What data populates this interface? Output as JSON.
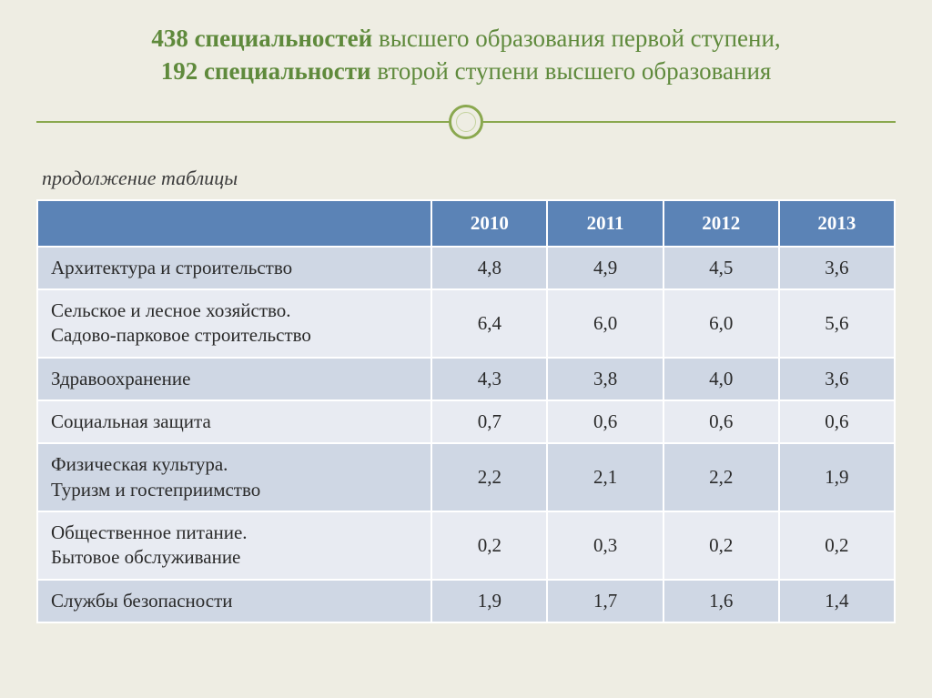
{
  "title": {
    "line1_bold": "438 специальностей",
    "line1_rest": " высшего образования первой ступени,",
    "line2_bold": "192 специальности",
    "line2_rest": " второй ступени высшего образования"
  },
  "subtitle": "продолжение таблицы",
  "colors": {
    "slide_bg": "#eeede3",
    "accent_green": "#5f8a3c",
    "divider_green": "#8aa84f",
    "header_bg": "#5b83b6",
    "header_text": "#ffffff",
    "row_odd_bg": "#cfd7e4",
    "row_even_bg": "#e8ebf2",
    "cell_border": "#ffffff",
    "text_color": "#2a2a2a"
  },
  "table": {
    "columns": [
      "",
      "2010",
      "2011",
      "2012",
      "2013"
    ],
    "rows": [
      {
        "label": "Архитектура и строительство",
        "values": [
          "4,8",
          "4,9",
          "4,5",
          "3,6"
        ]
      },
      {
        "label": "Сельское и лесное хозяйство.\nСадово-парковое строительство",
        "values": [
          "6,4",
          "6,0",
          "6,0",
          "5,6"
        ]
      },
      {
        "label": "Здравоохранение",
        "values": [
          "4,3",
          "3,8",
          "4,0",
          "3,6"
        ]
      },
      {
        "label": "Социальная защита",
        "values": [
          "0,7",
          "0,6",
          "0,6",
          "0,6"
        ]
      },
      {
        "label": "Физическая культура.\nТуризм и гостеприимство",
        "values": [
          "2,2",
          "2,1",
          "2,2",
          "1,9"
        ]
      },
      {
        "label": "Общественное питание.\nБытовое обслуживание",
        "values": [
          "0,2",
          "0,3",
          "0,2",
          "0,2"
        ]
      },
      {
        "label": "Службы безопасности",
        "values": [
          "1,9",
          "1,7",
          "1,6",
          "1,4"
        ]
      }
    ]
  }
}
